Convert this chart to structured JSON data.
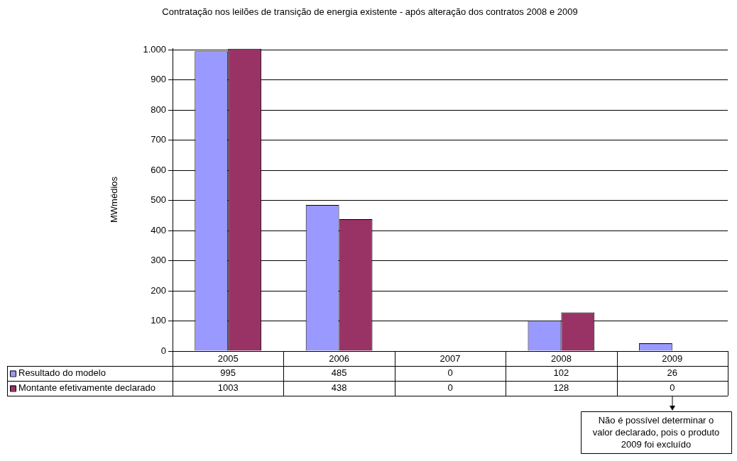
{
  "chart_data": {
    "type": "bar",
    "title": "Contratação nos leilões de transição de energia existente - após alteração dos contratos 2008 e 2009",
    "ylabel": "MWmédios",
    "categories": [
      "2005",
      "2006",
      "2007",
      "2008",
      "2009"
    ],
    "series": [
      {
        "name": "Resultado do modelo",
        "color": "#9999ff",
        "values": [
          995,
          485,
          0,
          102,
          26
        ]
      },
      {
        "name": "Montante efetivamente declarado",
        "color": "#993366",
        "values": [
          1003,
          438,
          0,
          128,
          0
        ]
      }
    ],
    "ylim": [
      0,
      1005
    ],
    "yticks": [
      0,
      100,
      200,
      300,
      400,
      500,
      600,
      700,
      800,
      900,
      {
        "value": 1000,
        "label": "1.000"
      }
    ],
    "grid": "y",
    "legend": "bottom",
    "data_labels": true,
    "annotations": [
      "Não é possível determinar o valor declarado, pois o produto 2009 foi excluído"
    ]
  }
}
